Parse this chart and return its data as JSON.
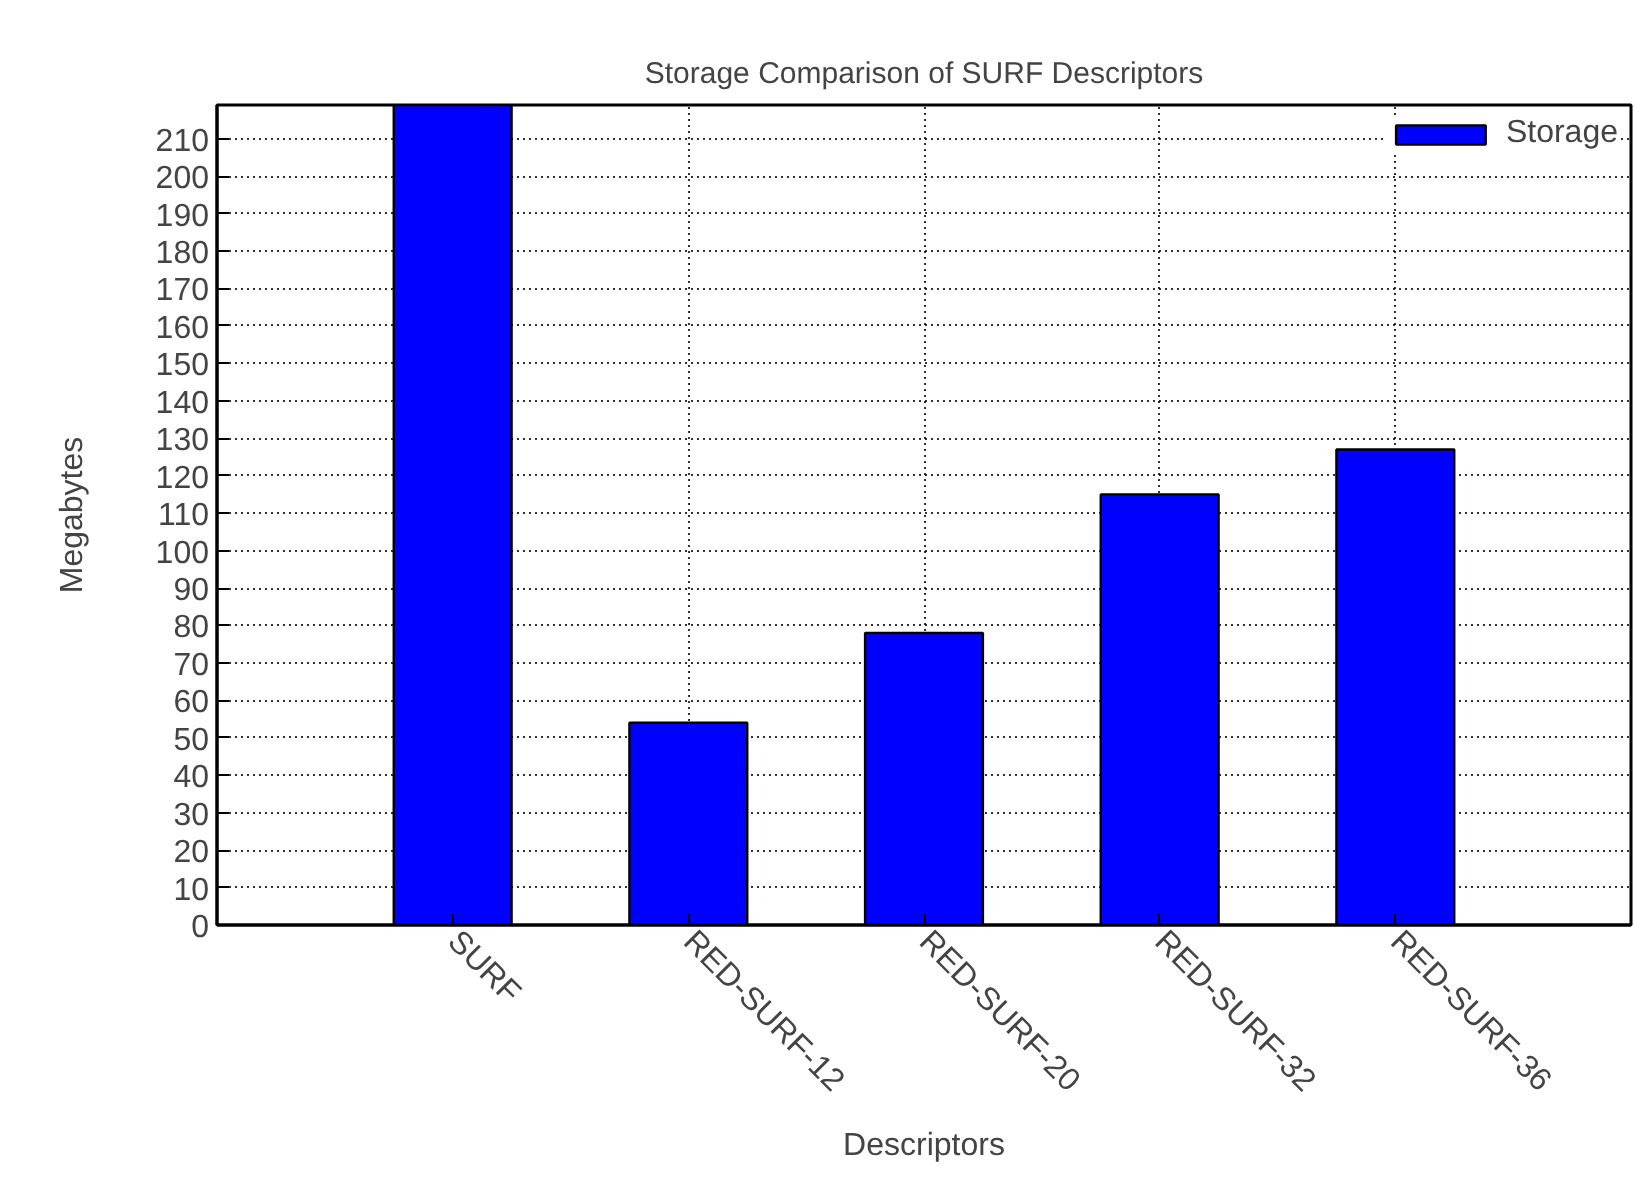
{
  "chart_data": {
    "type": "bar",
    "title": "Storage Comparison of SURF Descriptors",
    "xlabel": "Descriptors",
    "ylabel": "Megabytes",
    "categories": [
      "SURF",
      "RED-SURF-12",
      "RED-SURF-20",
      "RED-SURF-32",
      "RED-SURF-36"
    ],
    "series": [
      {
        "name": "Storage",
        "color": "#0000ff",
        "values": [
          219,
          54,
          78,
          115,
          127
        ]
      }
    ],
    "ylim": [
      0,
      219
    ],
    "yticks": [
      0,
      10,
      20,
      30,
      40,
      50,
      60,
      70,
      80,
      90,
      100,
      110,
      120,
      130,
      140,
      150,
      160,
      170,
      180,
      190,
      200,
      210
    ],
    "grid": true,
    "legend": "top right"
  }
}
